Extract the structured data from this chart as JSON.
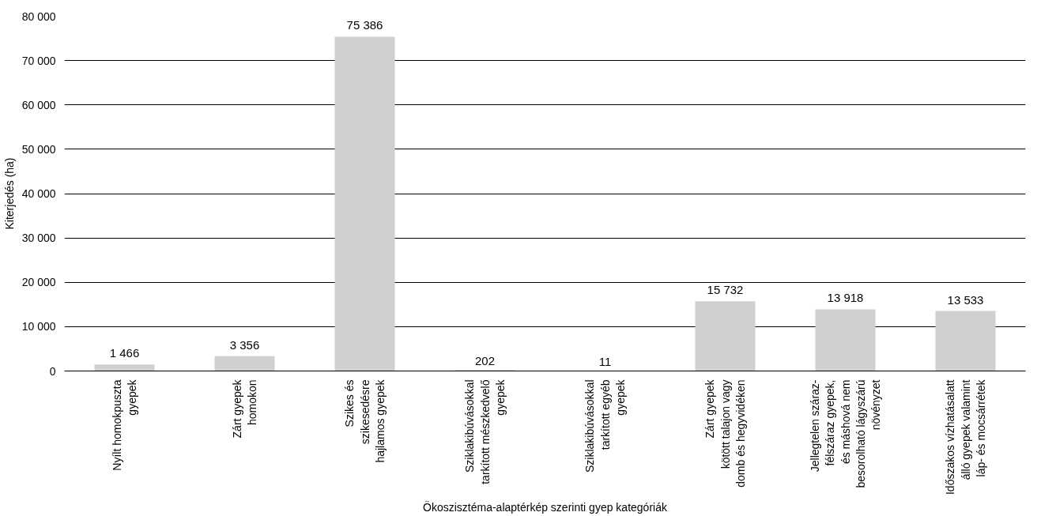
{
  "chart_data": {
    "type": "bar",
    "xlabel": "Ökoszisztéma-alaptérkép szerinti gyep kategóriák",
    "ylabel": "Kiterjedés (ha)",
    "categories": [
      "Nyílt homokpuszta\ngyepek",
      "Zárt gyepek\nhomokon",
      "Szikes és\nszikesedésre\nhajlamos gyepek",
      "Sziklakibúvásokkal\ntarkított mészkedvelő\ngyepek",
      "Sziklakibúvásokkal\ntarkított egyéb\ngyepek",
      "Zárt gyepek\nkötött talajon vagy\ndomb és hegyvidéken",
      "Jellegtelen száraz-\nfélszáraz gyepek,\nés máshová nem\nbesorolható lágyszárú\nnövényzet",
      "Időszakos vízhatásalatt\nálló gyepek valamint\nláp- és mocsárrétek"
    ],
    "values": [
      1466,
      3356,
      75386,
      202,
      11,
      15732,
      13918,
      13533
    ],
    "value_labels": [
      "1 466",
      "3 356",
      "75 386",
      "202",
      "11",
      "15 732",
      "13 918",
      "13 533"
    ],
    "color": "#d0d0d0",
    "ylim": [
      0,
      80000
    ],
    "yticks": [
      {
        "value": 0,
        "label": "0"
      },
      {
        "value": 10000,
        "label": "10 000"
      },
      {
        "value": 20000,
        "label": "20 000"
      },
      {
        "value": 30000,
        "label": "30 000"
      },
      {
        "value": 40000,
        "label": "40 000"
      },
      {
        "value": 50000,
        "label": "50 000"
      },
      {
        "value": 60000,
        "label": "60 000"
      },
      {
        "value": 70000,
        "label": "70 000"
      },
      {
        "value": 80000,
        "label": "80 000"
      }
    ],
    "grid": "y"
  }
}
